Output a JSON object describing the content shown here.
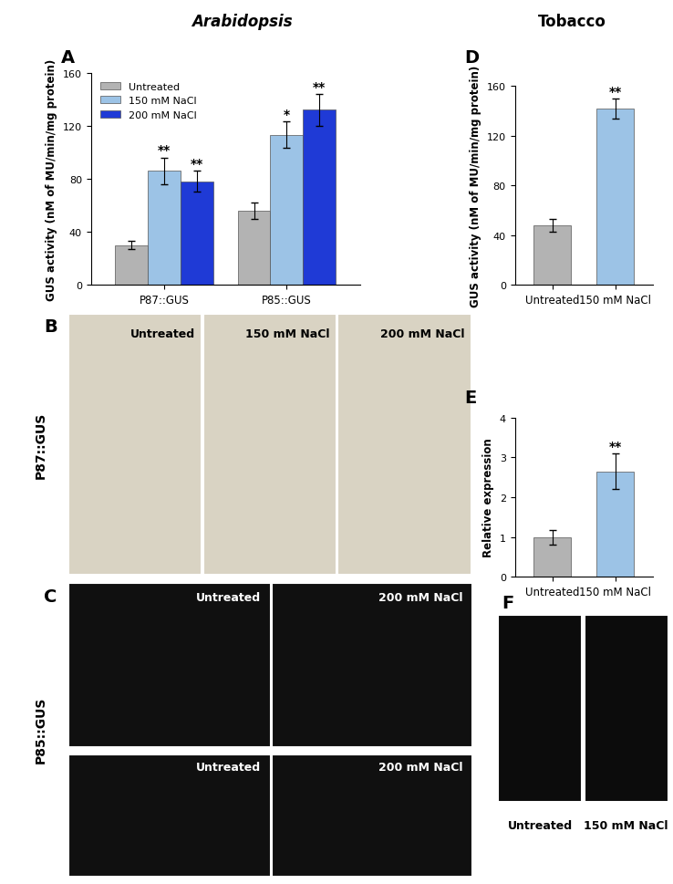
{
  "headers": [
    "Arabidopsis",
    "Tobacco"
  ],
  "chart_data": [
    {
      "panel": "A",
      "type": "bar",
      "categories": [
        "P87::GUS",
        "P85::GUS"
      ],
      "y_label": "GUS activity (nM of MU/min/mg protein)",
      "ylim": [
        0,
        160
      ],
      "yticks": [
        0,
        40,
        80,
        120,
        160
      ],
      "legend": "upper left",
      "series": [
        {
          "name": "Untreated",
          "color": "#b3b3b3",
          "values": [
            30,
            56
          ],
          "errors": [
            3,
            6
          ],
          "significance": [
            null,
            null
          ]
        },
        {
          "name": "150 mM NaCl",
          "color": "#9cc3e6",
          "values": [
            86,
            113
          ],
          "errors": [
            10,
            10
          ],
          "significance": [
            "**",
            "*"
          ]
        },
        {
          "name": "200 mM NaCl",
          "color": "#1f3ad6",
          "values": [
            78,
            132
          ],
          "errors": [
            8,
            12
          ],
          "significance": [
            "**",
            "**"
          ]
        }
      ]
    },
    {
      "panel": "D",
      "type": "bar",
      "categories": [
        "Untreated",
        "150 mM NaCl"
      ],
      "y_label": "GUS activity (nM of MU/min/mg protein)",
      "values": [
        48,
        142
      ],
      "errors": [
        5,
        8
      ],
      "significance": [
        null,
        "**"
      ],
      "colors": [
        "#b3b3b3",
        "#9cc3e6"
      ],
      "ylim": [
        0,
        160
      ],
      "yticks": [
        0,
        40,
        80,
        120,
        160
      ]
    },
    {
      "panel": "E",
      "type": "bar",
      "categories": [
        "Untreated",
        "150 mM NaCl"
      ],
      "y_label": "Relative expression",
      "values": [
        1,
        2.65
      ],
      "errors": [
        0.18,
        0.45
      ],
      "significance": [
        null,
        "**"
      ],
      "colors": [
        "#b3b3b3",
        "#9cc3e6"
      ],
      "ylim": [
        0,
        4
      ],
      "yticks": [
        0,
        1,
        2,
        3,
        4
      ]
    }
  ],
  "image_panels": [
    {
      "panel": "B",
      "construct": "P87::GUS",
      "images": [
        {
          "caption": "Untreated"
        },
        {
          "caption": "150 mM NaCl"
        },
        {
          "caption": "200 mM NaCl"
        }
      ]
    },
    {
      "panel": "C",
      "construct": "P85::GUS",
      "images": [
        {
          "caption": "Untreated"
        },
        {
          "caption": "200 mM NaCl"
        },
        {
          "caption": "Untreated"
        },
        {
          "caption": "200 mM NaCl"
        }
      ]
    },
    {
      "panel": "F",
      "images": [
        {
          "caption": "Untreated"
        },
        {
          "caption": "150 mM NaCl"
        }
      ]
    }
  ]
}
